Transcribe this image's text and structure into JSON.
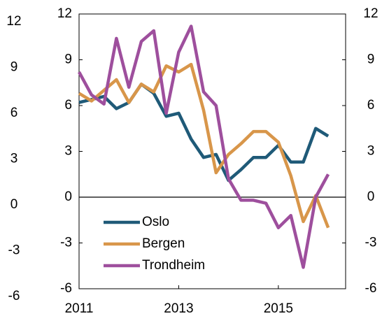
{
  "chart_data": {
    "type": "line",
    "x": [
      2011,
      2011.25,
      2011.5,
      2011.75,
      2012,
      2012.25,
      2012.5,
      2012.75,
      2013,
      2013.25,
      2013.5,
      2013.75,
      2014,
      2014.25,
      2014.5,
      2014.75,
      2015,
      2015.25,
      2015.5,
      2015.75,
      2016
    ],
    "series": [
      {
        "name": "Oslo",
        "color": "#1f5a78",
        "values": [
          6.2,
          6.4,
          6.6,
          5.8,
          6.2,
          7.4,
          6.8,
          5.3,
          5.5,
          3.8,
          2.6,
          2.8,
          1.1,
          1.8,
          2.6,
          2.6,
          3.4,
          2.3,
          2.3,
          4.5,
          4.0
        ]
      },
      {
        "name": "Bergen",
        "color": "#d8964a",
        "values": [
          6.8,
          6.3,
          7.0,
          7.7,
          6.2,
          7.4,
          6.9,
          8.6,
          8.2,
          8.7,
          5.7,
          1.6,
          2.8,
          3.5,
          4.3,
          4.3,
          3.6,
          1.4,
          -1.6,
          0.1,
          -2.0
        ]
      },
      {
        "name": "Trondheim",
        "color": "#9e4f9d",
        "values": [
          8.2,
          6.7,
          6.1,
          10.4,
          7.2,
          10.2,
          10.9,
          5.5,
          9.5,
          11.2,
          6.9,
          6.0,
          1.2,
          -0.2,
          -0.2,
          -0.4,
          -2.0,
          -1.2,
          -4.6,
          0.0,
          1.5
        ]
      }
    ],
    "xlim": [
      2011,
      2016.35
    ],
    "xticks": [
      2011,
      2013,
      2015
    ],
    "ylim": [
      -6,
      12
    ],
    "yticks": [
      12,
      9,
      6,
      3,
      0,
      -3,
      -6
    ],
    "legend": "lower-left"
  }
}
